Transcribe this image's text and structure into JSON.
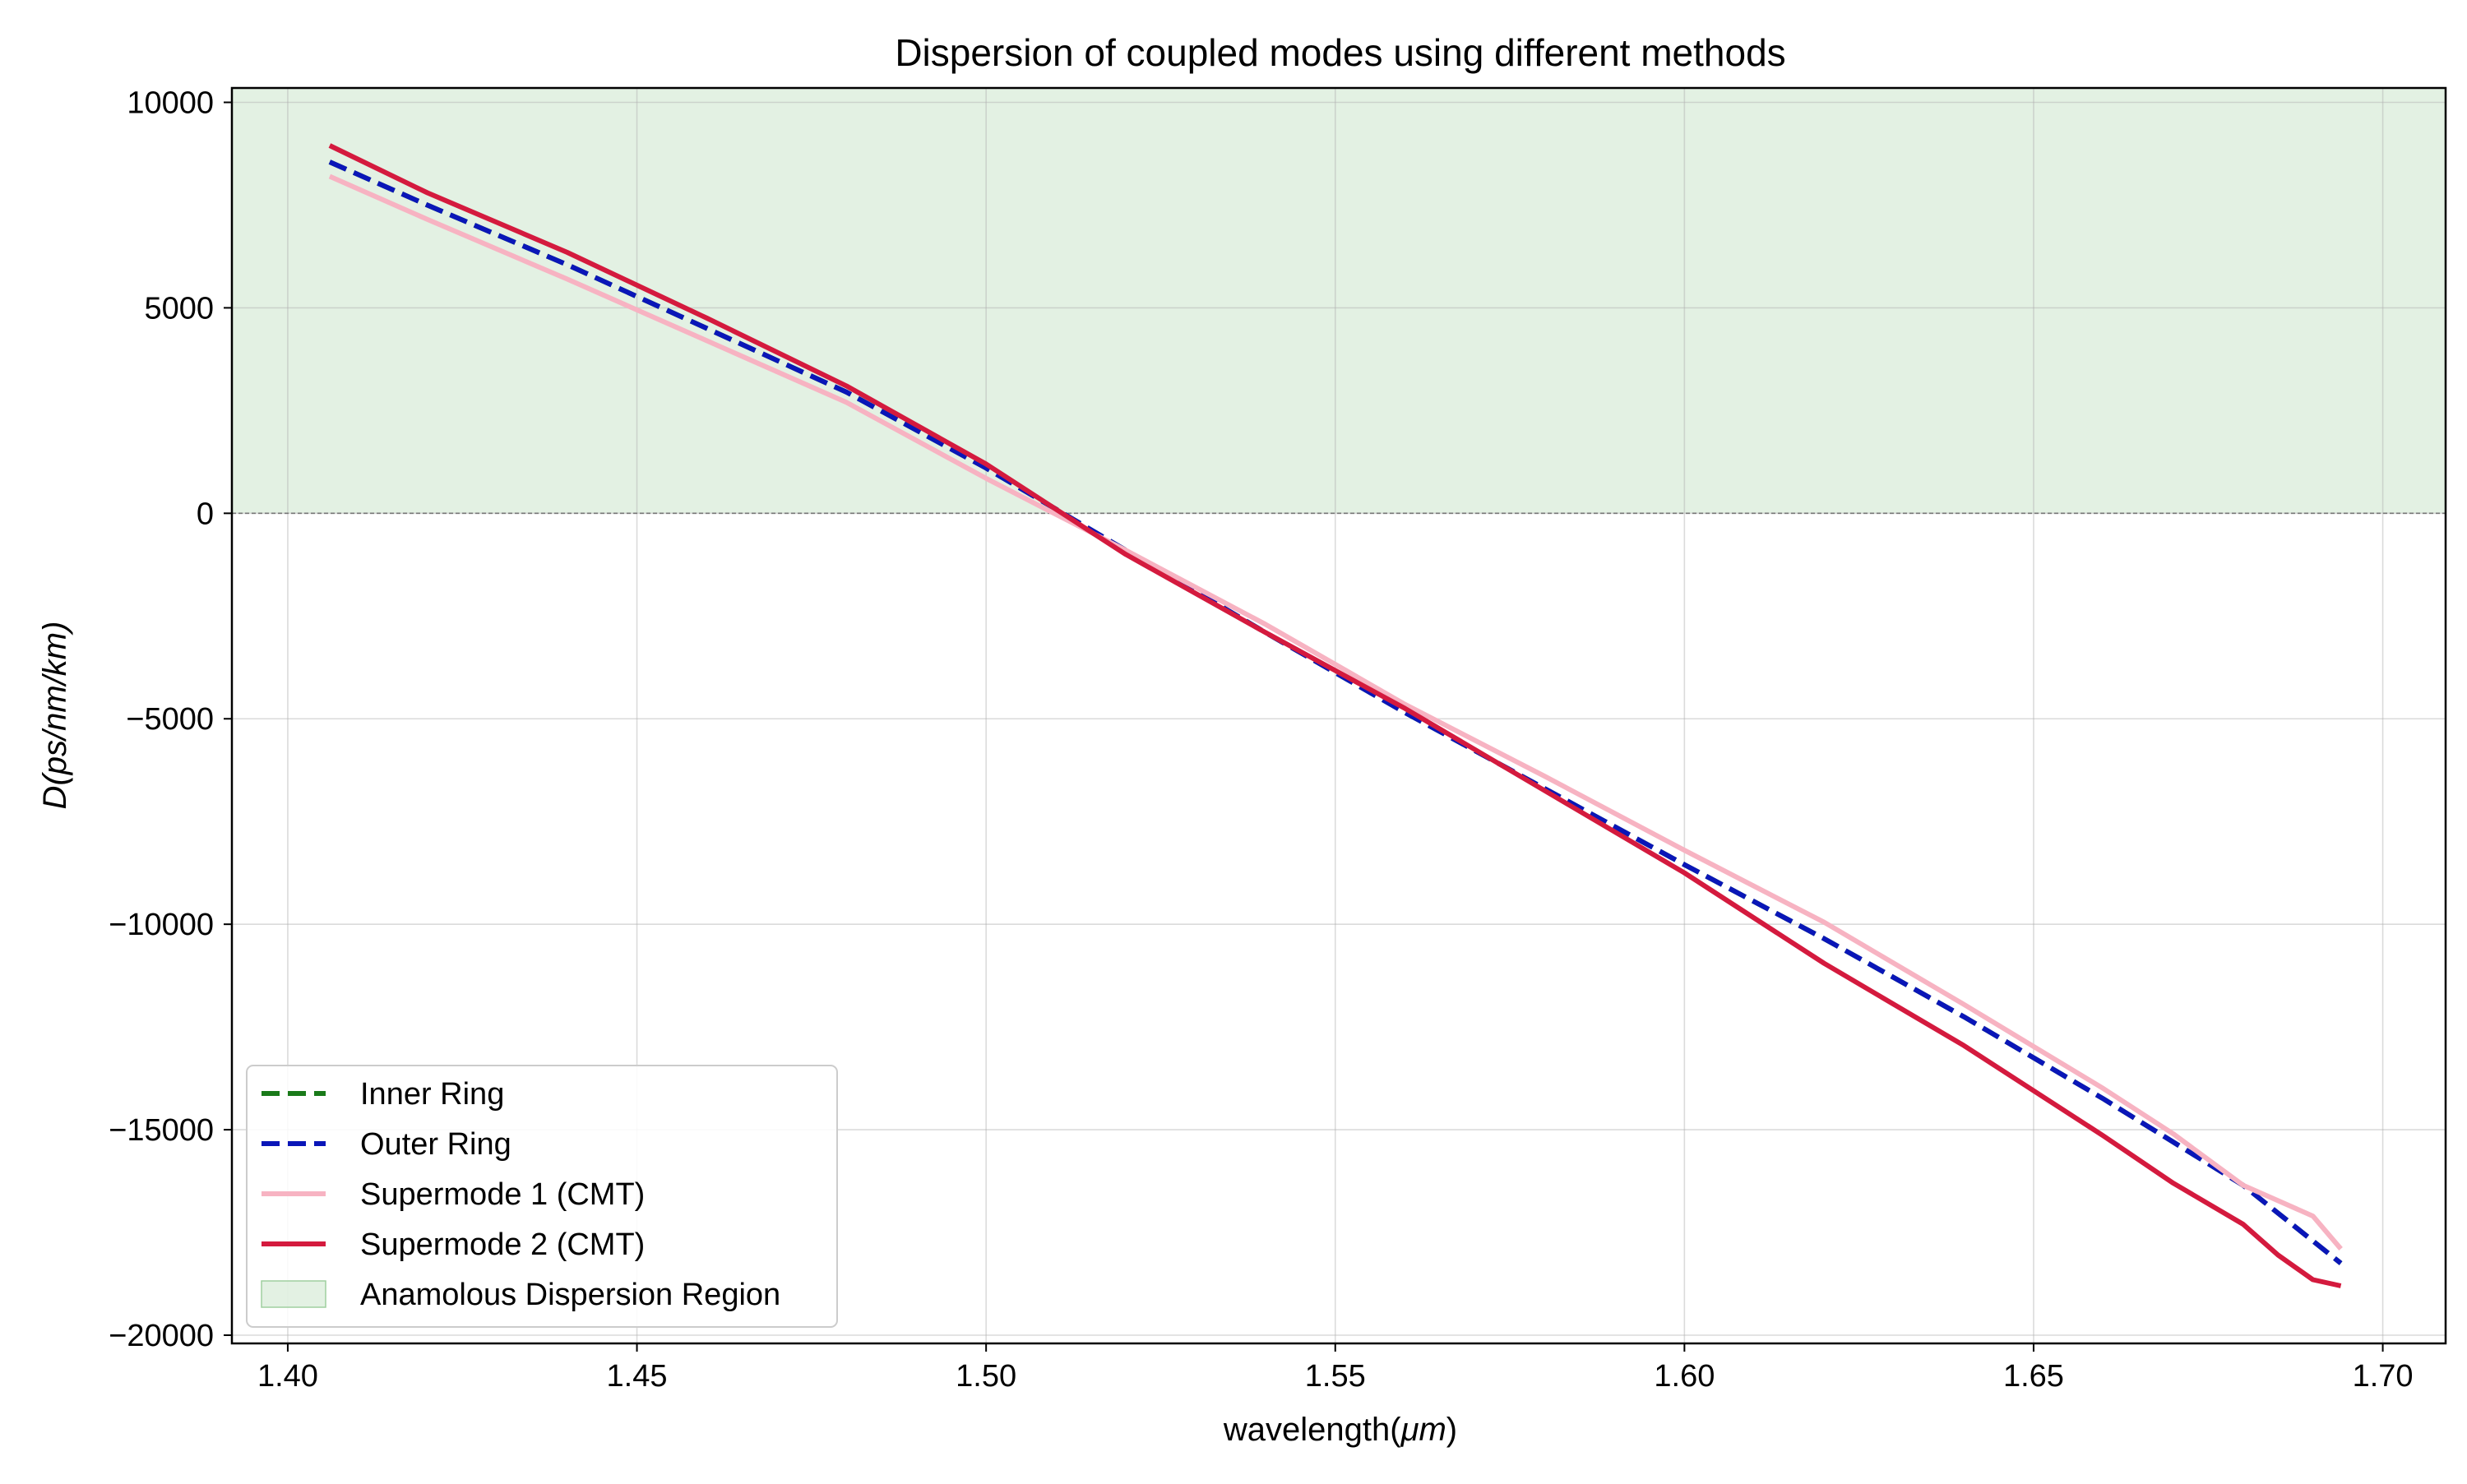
{
  "chart_data": {
    "type": "line",
    "title": "Dispersion of coupled modes using different methods",
    "xlabel": "wavelength(μm)",
    "xlabel_parts": {
      "prefix": "wavelength(",
      "unit": "μm",
      "suffix": ")"
    },
    "ylabel": "D(ps/nm/km)",
    "xlim": [
      1.392,
      1.709
    ],
    "ylim": [
      -20200,
      10350
    ],
    "x_ticks": [
      1.4,
      1.45,
      1.5,
      1.55,
      1.6,
      1.65,
      1.7
    ],
    "x_tick_labels": [
      "1.40",
      "1.45",
      "1.50",
      "1.55",
      "1.60",
      "1.65",
      "1.70"
    ],
    "y_ticks": [
      10000,
      5000,
      0,
      -5000,
      -10000,
      -15000,
      -20000
    ],
    "y_tick_labels": [
      "10000",
      "5000",
      "0",
      "−5000",
      "−10000",
      "−15000",
      "−20000"
    ],
    "grid": true,
    "legend_position": "lower-left",
    "shaded_region": {
      "name": "Anamolous Dispersion Region",
      "y_from": 0,
      "y_to": "top",
      "color": "#c8e3c8"
    },
    "reference_line": {
      "y": 0,
      "style": "dashed",
      "color": "#777777"
    },
    "series": [
      {
        "name": "Inner Ring",
        "color": "#1a7a1a",
        "dashed": true,
        "x": [
          1.406,
          1.42,
          1.44,
          1.46,
          1.48,
          1.5,
          1.52,
          1.54,
          1.56,
          1.58,
          1.6,
          1.62,
          1.64,
          1.66,
          1.68,
          1.694
        ],
        "y": [
          8550,
          7500,
          6050,
          4500,
          2950,
          1100,
          -900,
          -2900,
          -4850,
          -6700,
          -8550,
          -10350,
          -12250,
          -14250,
          -16350,
          -18250
        ]
      },
      {
        "name": "Outer Ring",
        "color": "#0a16b8",
        "dashed": true,
        "x": [
          1.406,
          1.42,
          1.44,
          1.46,
          1.48,
          1.5,
          1.52,
          1.54,
          1.56,
          1.58,
          1.6,
          1.62,
          1.64,
          1.66,
          1.68,
          1.694
        ],
        "y": [
          8550,
          7500,
          6050,
          4500,
          2950,
          1100,
          -900,
          -2900,
          -4850,
          -6700,
          -8550,
          -10350,
          -12250,
          -14250,
          -16350,
          -18250
        ]
      },
      {
        "name": "Supermode 1 (CMT)",
        "color": "#f7b3c2",
        "dashed": false,
        "x": [
          1.406,
          1.42,
          1.44,
          1.46,
          1.48,
          1.5,
          1.52,
          1.54,
          1.56,
          1.58,
          1.6,
          1.62,
          1.64,
          1.66,
          1.67,
          1.68,
          1.69,
          1.694
        ],
        "y": [
          8200,
          7150,
          5700,
          4200,
          2700,
          850,
          -900,
          -2700,
          -4650,
          -6400,
          -8200,
          -9950,
          -11950,
          -14000,
          -15100,
          -16350,
          -17100,
          -17900
        ]
      },
      {
        "name": "Supermode 2 (CMT)",
        "color": "#d41a3e",
        "dashed": false,
        "x": [
          1.406,
          1.42,
          1.44,
          1.46,
          1.48,
          1.5,
          1.52,
          1.54,
          1.56,
          1.58,
          1.6,
          1.62,
          1.64,
          1.66,
          1.67,
          1.68,
          1.685,
          1.69,
          1.694
        ],
        "y": [
          8950,
          7800,
          6350,
          4750,
          3100,
          1200,
          -1000,
          -2900,
          -4750,
          -6750,
          -8750,
          -10950,
          -12950,
          -15150,
          -16300,
          -17300,
          -18050,
          -18650,
          -18800
        ]
      }
    ]
  }
}
